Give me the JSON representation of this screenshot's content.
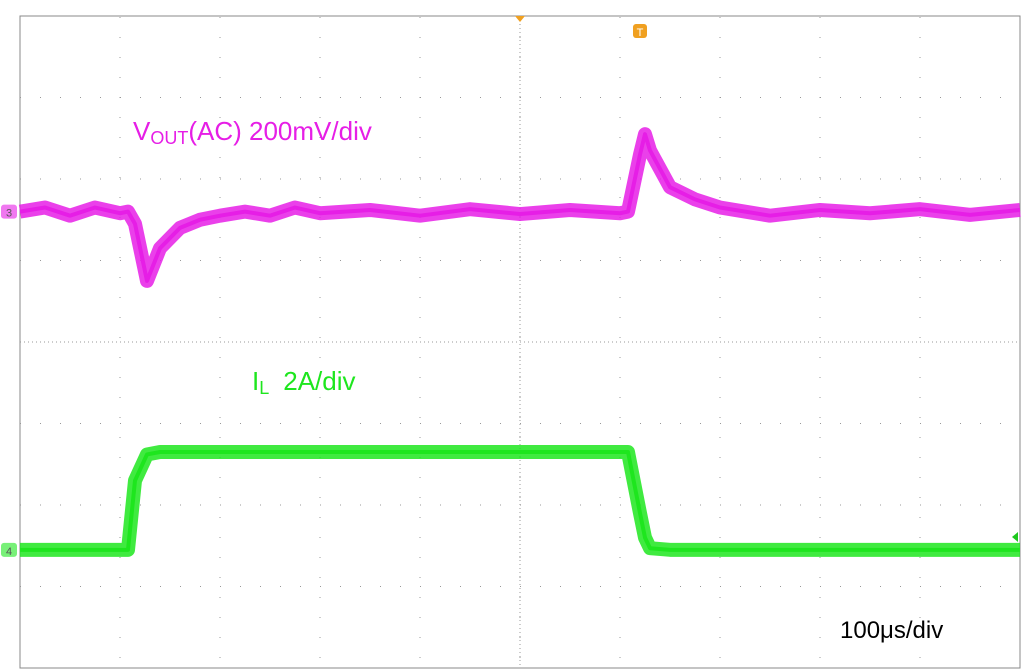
{
  "chart_data": {
    "type": "line",
    "x": [
      0,
      0.25,
      0.5,
      0.75,
      1.0,
      1.08,
      1.15,
      1.27,
      1.4,
      1.6,
      1.8,
      2.0,
      2.25,
      2.5,
      2.75,
      3.0,
      3.5,
      4.0,
      4.5,
      5.0,
      5.5,
      6.0,
      6.08,
      6.2,
      6.25,
      6.3,
      6.5,
      6.75,
      7.0,
      7.5,
      8.0,
      8.5,
      9.0,
      9.5,
      10.0
    ],
    "xlim": [
      0,
      10
    ],
    "ylim": [
      0,
      8
    ],
    "grid": true,
    "series": [
      {
        "name": [
          "V",
          "OUT",
          "(AC)  200mV/div"
        ],
        "color": "#e61ee6",
        "marker": "3",
        "values": [
          5.6,
          5.65,
          5.55,
          5.65,
          5.58,
          5.6,
          5.45,
          4.75,
          5.15,
          5.4,
          5.5,
          5.55,
          5.6,
          5.55,
          5.65,
          5.58,
          5.62,
          5.55,
          5.63,
          5.57,
          5.62,
          5.58,
          5.6,
          6.3,
          6.55,
          6.35,
          5.9,
          5.75,
          5.65,
          5.55,
          5.62,
          5.58,
          5.63,
          5.56,
          5.62
        ]
      },
      {
        "name": [
          "I",
          "L",
          "2A/div"
        ],
        "color": "#1ee61e",
        "marker": "4",
        "values": [
          1.45,
          1.45,
          1.45,
          1.45,
          1.45,
          1.45,
          2.3,
          2.62,
          2.65,
          2.65,
          2.65,
          2.65,
          2.65,
          2.65,
          2.65,
          2.65,
          2.65,
          2.65,
          2.65,
          2.65,
          2.65,
          2.65,
          2.65,
          1.9,
          1.6,
          1.47,
          1.45,
          1.45,
          1.45,
          1.45,
          1.45,
          1.45,
          1.45,
          1.45,
          1.45
        ]
      }
    ],
    "trigger_marker": "T",
    "timebase": "100μs/div"
  }
}
